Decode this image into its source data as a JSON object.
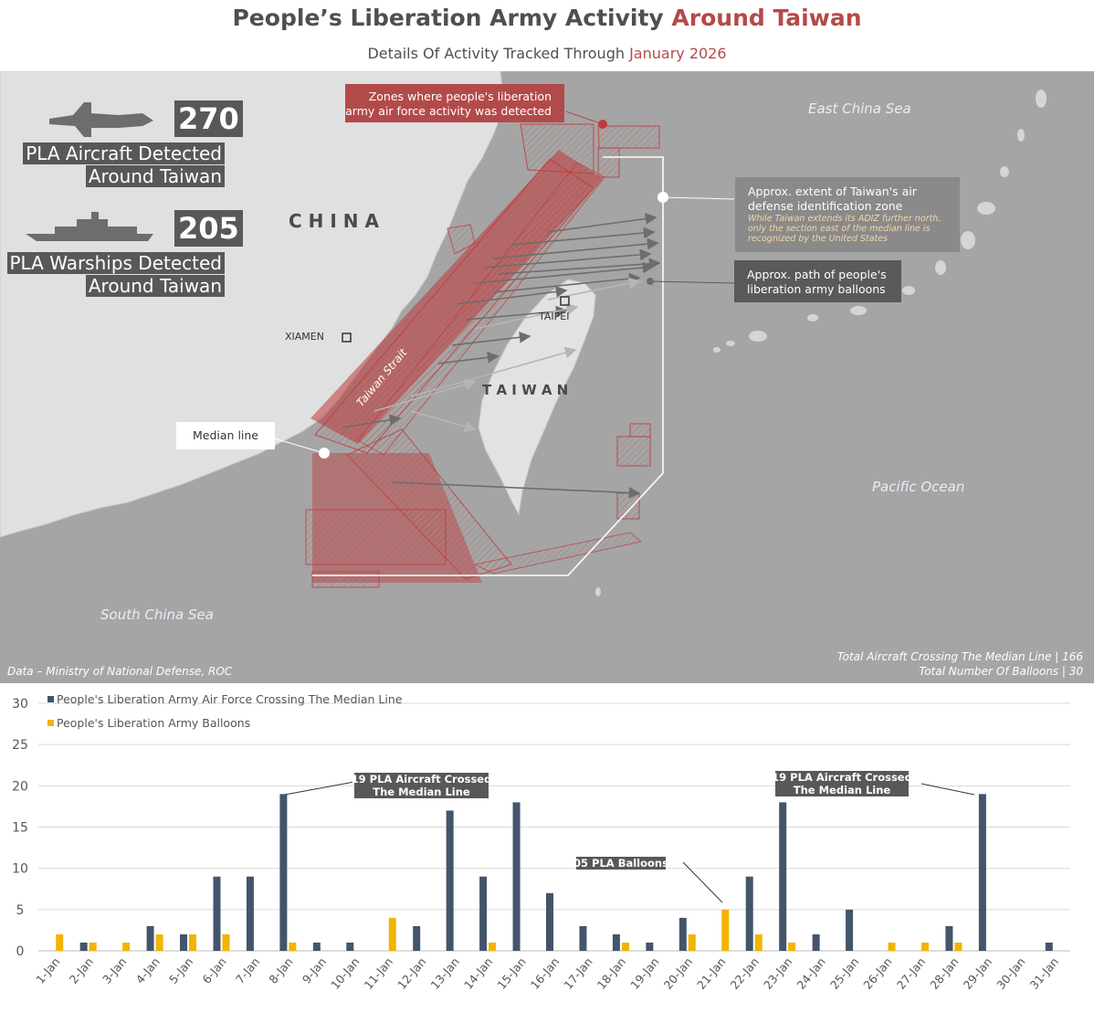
{
  "header": {
    "title_main": "People’s Liberation Army Activity ",
    "title_highlight": "Around Taiwan",
    "subtitle_main": "Details Of Activity Tracked Through ",
    "subtitle_highlight": "January 2026"
  },
  "stats": {
    "aircraft_count": "270",
    "aircraft_line1": "PLA Aircraft Detected",
    "aircraft_line2": "Around Taiwan",
    "warships_count": "205",
    "warships_line1": "PLA Warships Detected",
    "warships_line2": "Around Taiwan"
  },
  "map": {
    "label_china": "C H I N A",
    "label_taiwan": "T A I W A N",
    "label_xiamen": "XIAMEN",
    "label_taipei": "TAIPEI",
    "label_strait": "Taiwan Strait",
    "label_east_china_sea": "East China Sea",
    "label_pacific": "Pacific Ocean",
    "label_south_china_sea": "South China Sea",
    "callout_zones_line1": "Zones where people's liberation",
    "callout_zones_line2": "army air force activity was detected",
    "callout_adiz_line1": "Approx. extent of Taiwan's air",
    "callout_adiz_line2": "defense identification zone",
    "callout_adiz_note1": "While Taiwan extends its ADIZ further north,",
    "callout_adiz_note2": "only the section east of the median line is",
    "callout_adiz_note3": "recognized by the United States",
    "callout_balloons_line1": "Approx. path of people's",
    "callout_balloons_line2": "liberation army balloons",
    "callout_median": "Median line",
    "source": "Data – Ministry of National Defense, ROC",
    "total_crossing": "Total Aircraft Crossing The Median Line | 166",
    "total_balloons": "Total Number Of Balloons | 30"
  },
  "colors": {
    "aircraft_series": "#44546a",
    "balloon_series": "#f2b400",
    "accent_red": "#b34a4a",
    "label_box": "#585858",
    "map_land": "#e2e2e2",
    "map_sea": "#a4a4a4"
  },
  "chart_data": {
    "type": "bar",
    "categories": [
      "1-Jan",
      "2-Jan",
      "3-Jan",
      "4-Jan",
      "5-Jan",
      "6-Jan",
      "7-Jan",
      "8-Jan",
      "9-Jan",
      "10-Jan",
      "11-Jan",
      "12-Jan",
      "13-Jan",
      "14-Jan",
      "15-Jan",
      "16-Jan",
      "17-Jan",
      "18-Jan",
      "19-Jan",
      "20-Jan",
      "21-Jan",
      "22-Jan",
      "23-Jan",
      "24-Jan",
      "25-Jan",
      "26-Jan",
      "27-Jan",
      "28-Jan",
      "29-Jan",
      "30-Jan",
      "31-Jan"
    ],
    "series": [
      {
        "name": "People's Liberation Army Air Force Crossing The Median Line",
        "color": "#44546a",
        "values": [
          0,
          1,
          0,
          3,
          2,
          9,
          9,
          19,
          1,
          1,
          0,
          3,
          17,
          9,
          18,
          7,
          3,
          2,
          1,
          4,
          0,
          9,
          18,
          2,
          5,
          0,
          0,
          3,
          19,
          0,
          1
        ]
      },
      {
        "name": "People's Liberation Army Balloons",
        "color": "#f2b400",
        "values": [
          2,
          1,
          1,
          2,
          2,
          2,
          0,
          1,
          0,
          0,
          4,
          0,
          0,
          1,
          0,
          0,
          0,
          1,
          0,
          2,
          5,
          2,
          1,
          0,
          0,
          1,
          1,
          1,
          0,
          0,
          0
        ]
      }
    ],
    "y_ticks": [
      0,
      5,
      10,
      15,
      20,
      25,
      30
    ],
    "ylim": [
      0,
      30
    ],
    "grid": true,
    "legend_position": "top-left",
    "annotations": [
      {
        "line1": "19 PLA Aircraft Crossed",
        "line2": "The Median Line",
        "day": "8-Jan",
        "series": 0
      },
      {
        "line1": "05 PLA Balloons",
        "line2": "",
        "day": "21-Jan",
        "series": 1
      },
      {
        "line1": "19 PLA Aircraft Crossed",
        "line2": "The Median Line",
        "day": "29-Jan",
        "series": 0
      }
    ]
  }
}
